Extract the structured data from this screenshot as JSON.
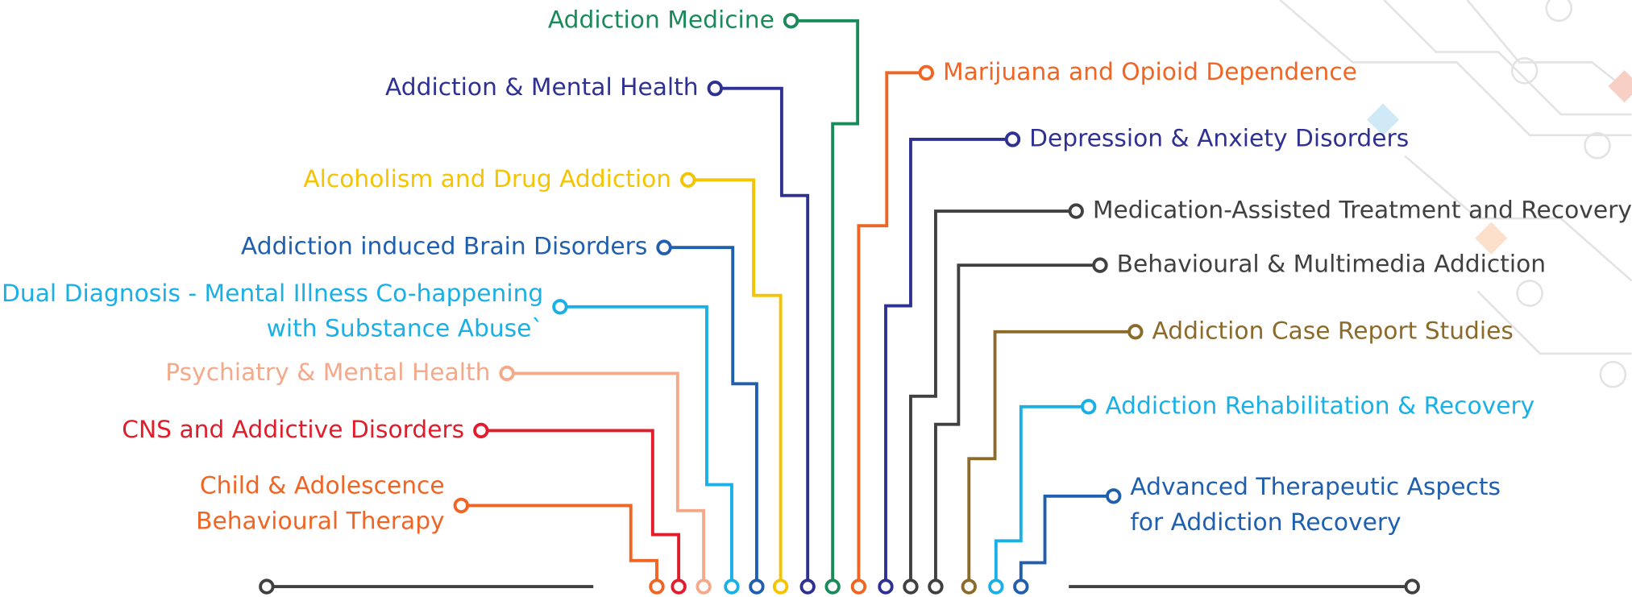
{
  "left_topics": [
    {
      "lines": [
        "Addiction Medicine"
      ]
    },
    {
      "lines": [
        "Addiction & Mental Health"
      ]
    },
    {
      "lines": [
        "Alcoholism and Drug Addiction"
      ]
    },
    {
      "lines": [
        "Addiction induced Brain Disorders"
      ]
    },
    {
      "lines": [
        "Dual Diagnosis - Mental Illness Co-happening",
        "with Substance Abuse`"
      ]
    },
    {
      "lines": [
        "Psychiatry & Mental Health"
      ]
    },
    {
      "lines": [
        "CNS and Addictive Disorders"
      ]
    },
    {
      "lines": [
        "Child & Adolescence",
        "Behavioural Therapy"
      ]
    }
  ],
  "right_topics": [
    {
      "lines": [
        "Marijuana and Opioid Dependence"
      ]
    },
    {
      "lines": [
        "Depression & Anxiety Disorders"
      ]
    },
    {
      "lines": [
        "Medication-Assisted Treatment and Recovery"
      ]
    },
    {
      "lines": [
        "Behavioural & Multimedia Addiction"
      ]
    },
    {
      "lines": [
        "Addiction Case Report Studies"
      ]
    },
    {
      "lines": [
        "Addiction Rehabilitation & Recovery"
      ]
    },
    {
      "lines": [
        "Advanced Therapeutic Aspects",
        "for Addiction Recovery"
      ]
    }
  ]
}
